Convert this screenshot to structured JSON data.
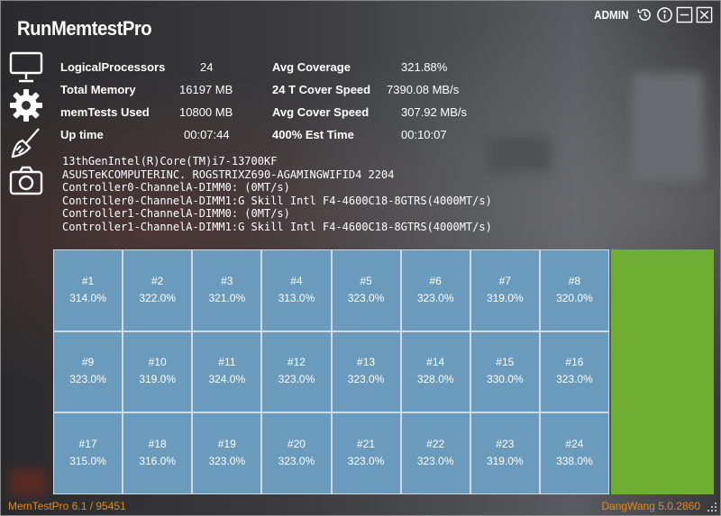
{
  "app": {
    "title": "RunMemtestPro",
    "user_mode": "ADMIN"
  },
  "titlebar_icons": [
    "history-icon",
    "info-icon",
    "minimize-icon",
    "close-icon"
  ],
  "sidebar_icons": [
    "monitor-icon",
    "gear-icon",
    "broom-icon",
    "camera-icon"
  ],
  "stats": {
    "logical_processors": {
      "label": "LogicalProcessors",
      "value": "24"
    },
    "total_memory": {
      "label": "Total Memory",
      "value": "16197 MB"
    },
    "memtests_used": {
      "label": "memTests Used",
      "value": "10800 MB"
    },
    "up_time": {
      "label": "Up time",
      "value": "00:07:44"
    },
    "avg_coverage": {
      "label": "Avg Coverage",
      "value": "321.88%"
    },
    "t_cover_speed": {
      "label": "24 T Cover Speed",
      "value": "7390.08 MB/s"
    },
    "avg_cover_speed": {
      "label": "Avg Cover Speed",
      "value": "307.92 MB/s"
    },
    "est_time": {
      "label": "400% Est Time",
      "value": "00:10:07"
    }
  },
  "system_info": [
    "13thGenIntel(R)Core(TM)i7-13700KF",
    "ASUSTeKCOMPUTERINC. ROGSTRIXZ690-AGAMINGWIFID4 2204",
    "Controller0-ChannelA-DIMM0: (0MT/s)",
    "Controller0-ChannelA-DIMM1:G Skill Intl F4-4600C18-8GTRS(4000MT/s)",
    "Controller1-ChannelA-DIMM0: (0MT/s)",
    "Controller1-ChannelA-DIMM1:G Skill Intl F4-4600C18-8GTRS(4000MT/s)"
  ],
  "threads": [
    {
      "id": "#1",
      "coverage": "314.0%"
    },
    {
      "id": "#2",
      "coverage": "322.0%"
    },
    {
      "id": "#3",
      "coverage": "321.0%"
    },
    {
      "id": "#4",
      "coverage": "313.0%"
    },
    {
      "id": "#5",
      "coverage": "323.0%"
    },
    {
      "id": "#6",
      "coverage": "323.0%"
    },
    {
      "id": "#7",
      "coverage": "319.0%"
    },
    {
      "id": "#8",
      "coverage": "320.0%"
    },
    {
      "id": "#9",
      "coverage": "323.0%"
    },
    {
      "id": "#10",
      "coverage": "319.0%"
    },
    {
      "id": "#11",
      "coverage": "324.0%"
    },
    {
      "id": "#12",
      "coverage": "323.0%"
    },
    {
      "id": "#13",
      "coverage": "323.0%"
    },
    {
      "id": "#14",
      "coverage": "328.0%"
    },
    {
      "id": "#15",
      "coverage": "330.0%"
    },
    {
      "id": "#16",
      "coverage": "323.0%"
    },
    {
      "id": "#17",
      "coverage": "315.0%"
    },
    {
      "id": "#18",
      "coverage": "316.0%"
    },
    {
      "id": "#19",
      "coverage": "323.0%"
    },
    {
      "id": "#20",
      "coverage": "323.0%"
    },
    {
      "id": "#21",
      "coverage": "323.0%"
    },
    {
      "id": "#22",
      "coverage": "323.0%"
    },
    {
      "id": "#23",
      "coverage": "319.0%"
    },
    {
      "id": "#24",
      "coverage": "338.0%"
    }
  ],
  "status_bar": {
    "left": "MemTestPro 6.1 / 95451",
    "right": "DangWang 5.0.2860"
  },
  "colors": {
    "cell_bg": "#6a9bbd",
    "progress_green": "#6fae32",
    "status_text": "#e38a1e"
  }
}
